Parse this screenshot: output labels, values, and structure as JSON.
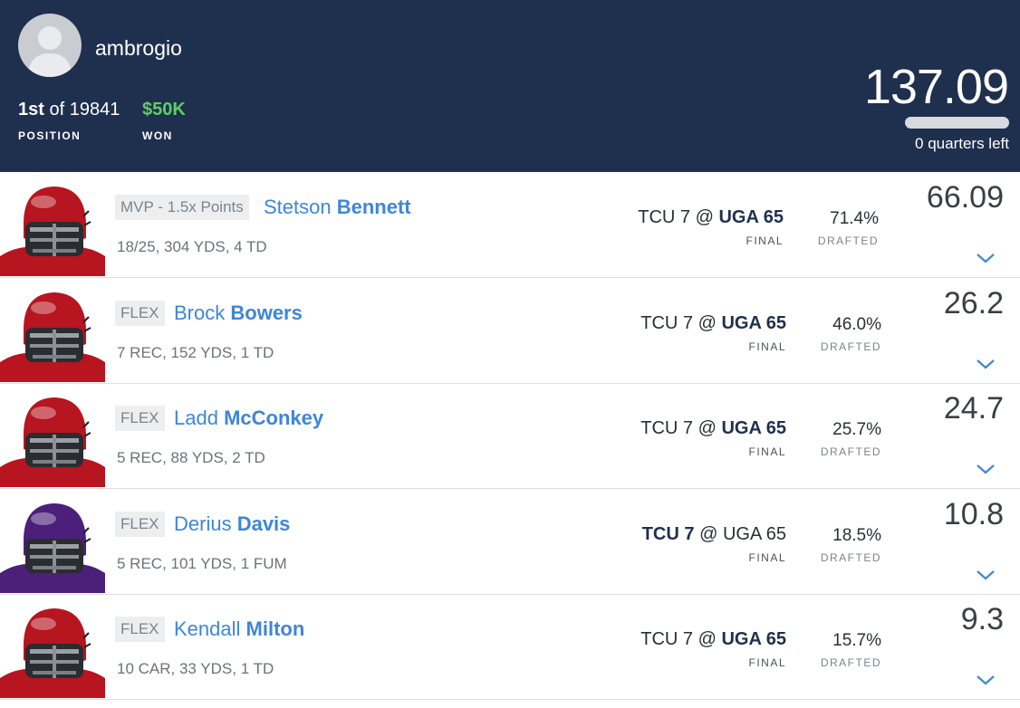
{
  "header": {
    "username": "ambrogio",
    "position_rank": "1st",
    "position_of": "of 19841",
    "position_label": "POSITION",
    "won_value": "$50K",
    "won_label": "WON",
    "total_points": "137.09",
    "quarters_left": "0 quarters left",
    "progress_fraction": 0
  },
  "colors": {
    "header_bg": "#1f2f4e",
    "accent_blue": "#3d86d9",
    "won_green": "#5fcf65",
    "uga_red": "#b7151f",
    "tcu_purple": "#4b1f7a"
  },
  "players": [
    {
      "badge": "MVP - 1.5x Points",
      "first_name": "Stetson",
      "last_name": "Bennett",
      "statline": "18/25, 304 YDS, 4 TD",
      "away_score": "TCU 7",
      "at": "@",
      "home_score": "UGA 65",
      "bold_side": "home",
      "status": "FINAL",
      "drafted_pct": "71.4%",
      "drafted_label": "DRAFTED",
      "points": "66.09",
      "helmet": "uga-helmet-icon"
    },
    {
      "badge": "FLEX",
      "first_name": "Brock",
      "last_name": "Bowers",
      "statline": "7 REC, 152 YDS, 1 TD",
      "away_score": "TCU 7",
      "at": "@",
      "home_score": "UGA 65",
      "bold_side": "home",
      "status": "FINAL",
      "drafted_pct": "46.0%",
      "drafted_label": "DRAFTED",
      "points": "26.2",
      "helmet": "uga-helmet-icon"
    },
    {
      "badge": "FLEX",
      "first_name": "Ladd",
      "last_name": "McConkey",
      "statline": "5 REC, 88 YDS, 2 TD",
      "away_score": "TCU 7",
      "at": "@",
      "home_score": "UGA 65",
      "bold_side": "home",
      "status": "FINAL",
      "drafted_pct": "25.7%",
      "drafted_label": "DRAFTED",
      "points": "24.7",
      "helmet": "uga-helmet-icon"
    },
    {
      "badge": "FLEX",
      "first_name": "Derius",
      "last_name": "Davis",
      "statline": "5 REC, 101 YDS, 1 FUM",
      "away_score": "TCU 7",
      "at": "@",
      "home_score": "UGA 65",
      "bold_side": "away",
      "status": "FINAL",
      "drafted_pct": "18.5%",
      "drafted_label": "DRAFTED",
      "points": "10.8",
      "helmet": "tcu-helmet-icon"
    },
    {
      "badge": "FLEX",
      "first_name": "Kendall",
      "last_name": "Milton",
      "statline": "10 CAR, 33 YDS, 1 TD",
      "away_score": "TCU 7",
      "at": "@",
      "home_score": "UGA 65",
      "bold_side": "home",
      "status": "FINAL",
      "drafted_pct": "15.7%",
      "drafted_label": "DRAFTED",
      "points": "9.3",
      "helmet": "uga-helmet-icon"
    }
  ]
}
